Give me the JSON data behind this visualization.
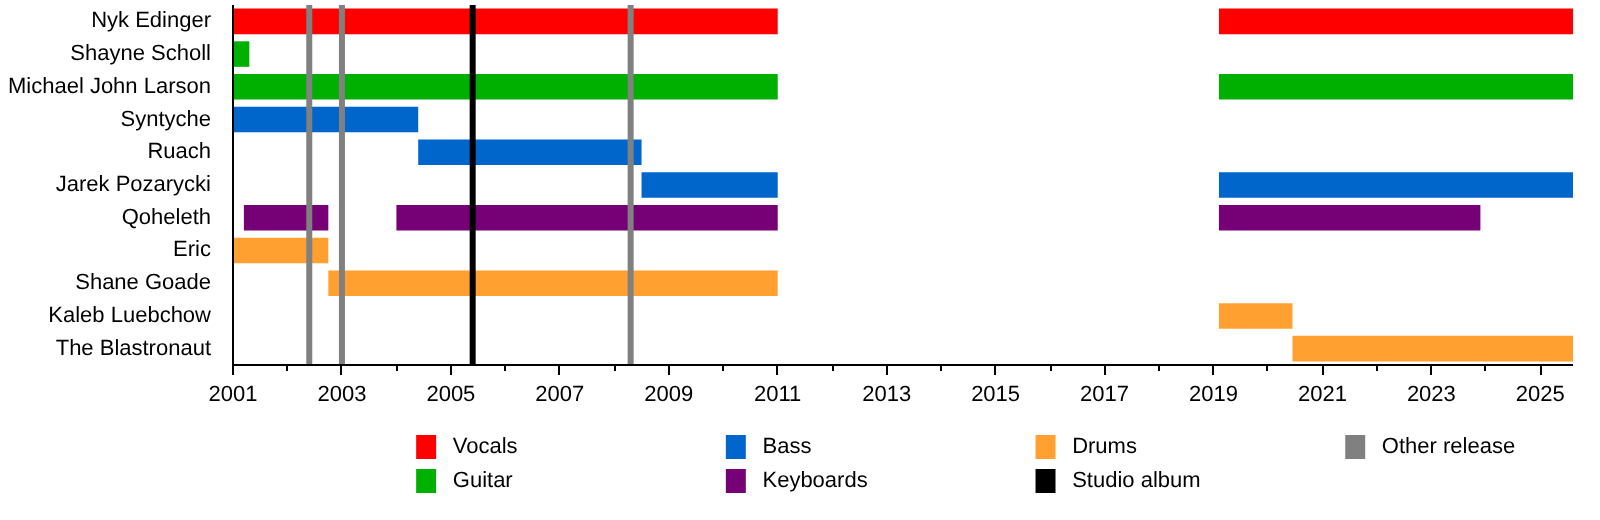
{
  "chart_data": {
    "type": "bar",
    "orientation": "horizontal",
    "categories": [
      "Nyk Edinger",
      "Shayne Scholl",
      "Michael John Larson",
      "Syntyche",
      "Ruach",
      "Jarek Pozarycki",
      "Qoheleth",
      "Eric",
      "Shane Goade",
      "Kaleb Luebchow",
      "The Blastronaut"
    ],
    "series": [
      {
        "name": "Vocals",
        "color": "#ff0000",
        "base": [
          2001,
          null,
          null,
          null,
          null,
          null,
          null,
          null,
          null,
          null,
          null
        ],
        "values": [
          10.0,
          null,
          null,
          null,
          null,
          null,
          null,
          null,
          null,
          null,
          null
        ]
      },
      {
        "color": "#ff0000",
        "base": [
          2019.1,
          null,
          null,
          null,
          null,
          null,
          null,
          null,
          null,
          null,
          null
        ],
        "values": [
          6.5,
          null,
          null,
          null,
          null,
          null,
          null,
          null,
          null,
          null,
          null
        ]
      },
      {
        "name": "Guitar",
        "color": "#00b000",
        "base": [
          null,
          2001,
          2001,
          null,
          null,
          null,
          null,
          null,
          null,
          null,
          null
        ],
        "values": [
          null,
          0.3,
          10.0,
          null,
          null,
          null,
          null,
          null,
          null,
          null,
          null
        ]
      },
      {
        "color": "#00b000",
        "base": [
          null,
          null,
          2019.1,
          null,
          null,
          null,
          null,
          null,
          null,
          null,
          null
        ],
        "values": [
          null,
          null,
          6.5,
          null,
          null,
          null,
          null,
          null,
          null,
          null,
          null
        ]
      },
      {
        "name": "Bass",
        "color": "#0066cc",
        "base": [
          null,
          null,
          null,
          2001,
          2004.4,
          2008.5,
          null,
          null,
          null,
          null,
          null
        ],
        "values": [
          null,
          null,
          null,
          3.4,
          4.1,
          2.5,
          null,
          null,
          null,
          null,
          null
        ]
      },
      {
        "color": "#0066cc",
        "base": [
          null,
          null,
          null,
          null,
          null,
          2019.1,
          null,
          null,
          null,
          null,
          null
        ],
        "values": [
          null,
          null,
          null,
          null,
          null,
          6.5,
          null,
          null,
          null,
          null,
          null
        ]
      },
      {
        "name": "Keyboards",
        "color": "#760076",
        "base": [
          null,
          null,
          null,
          null,
          null,
          null,
          2001.2,
          null,
          null,
          null,
          null
        ],
        "values": [
          null,
          null,
          null,
          null,
          null,
          null,
          1.55,
          null,
          null,
          null,
          null
        ]
      },
      {
        "color": "#760076",
        "base": [
          null,
          null,
          null,
          null,
          null,
          null,
          2004.0,
          null,
          null,
          null,
          null
        ],
        "values": [
          null,
          null,
          null,
          null,
          null,
          null,
          7.0,
          null,
          null,
          null,
          null
        ]
      },
      {
        "color": "#760076",
        "base": [
          null,
          null,
          null,
          null,
          null,
          null,
          2019.1,
          null,
          null,
          null,
          null
        ],
        "values": [
          null,
          null,
          null,
          null,
          null,
          null,
          4.8,
          null,
          null,
          null,
          null
        ]
      },
      {
        "name": "Drums",
        "color": "#ffa030",
        "base": [
          null,
          null,
          null,
          null,
          null,
          null,
          null,
          2001,
          2002.75,
          2019.1,
          2020.45
        ],
        "values": [
          null,
          null,
          null,
          null,
          null,
          null,
          null,
          1.75,
          8.25,
          1.35,
          5.15
        ]
      }
    ],
    "ref_lines": [
      {
        "axis": "x",
        "value": 2005.4,
        "label": "Studio album",
        "color": "#000000"
      },
      {
        "axis": "x",
        "value": 2002.4,
        "label": "Other release",
        "color": "#808080"
      },
      {
        "axis": "x",
        "value": 2003.0,
        "label": null,
        "color": "#808080"
      },
      {
        "axis": "x",
        "value": 2008.3,
        "label": null,
        "color": "#808080"
      }
    ],
    "xlim": [
      2001,
      2025.6
    ],
    "xticks": [
      2001,
      {
        "value": 2002,
        "label": null
      },
      2003,
      {
        "value": 2004,
        "label": null
      },
      2005,
      {
        "value": 2006,
        "label": null
      },
      2007,
      {
        "value": 2008,
        "label": null
      },
      2009,
      {
        "value": 2010,
        "label": null
      },
      2011,
      {
        "value": 2012,
        "label": null
      },
      2013,
      {
        "value": 2014,
        "label": null
      },
      2015,
      {
        "value": 2016,
        "label": null
      },
      2017,
      {
        "value": 2018,
        "label": null
      },
      2019,
      {
        "value": 2020,
        "label": null
      },
      2021,
      {
        "value": 2022,
        "label": null
      },
      2023,
      {
        "value": 2024,
        "label": null
      },
      2025
    ],
    "grid": false,
    "legend": "bottom"
  }
}
